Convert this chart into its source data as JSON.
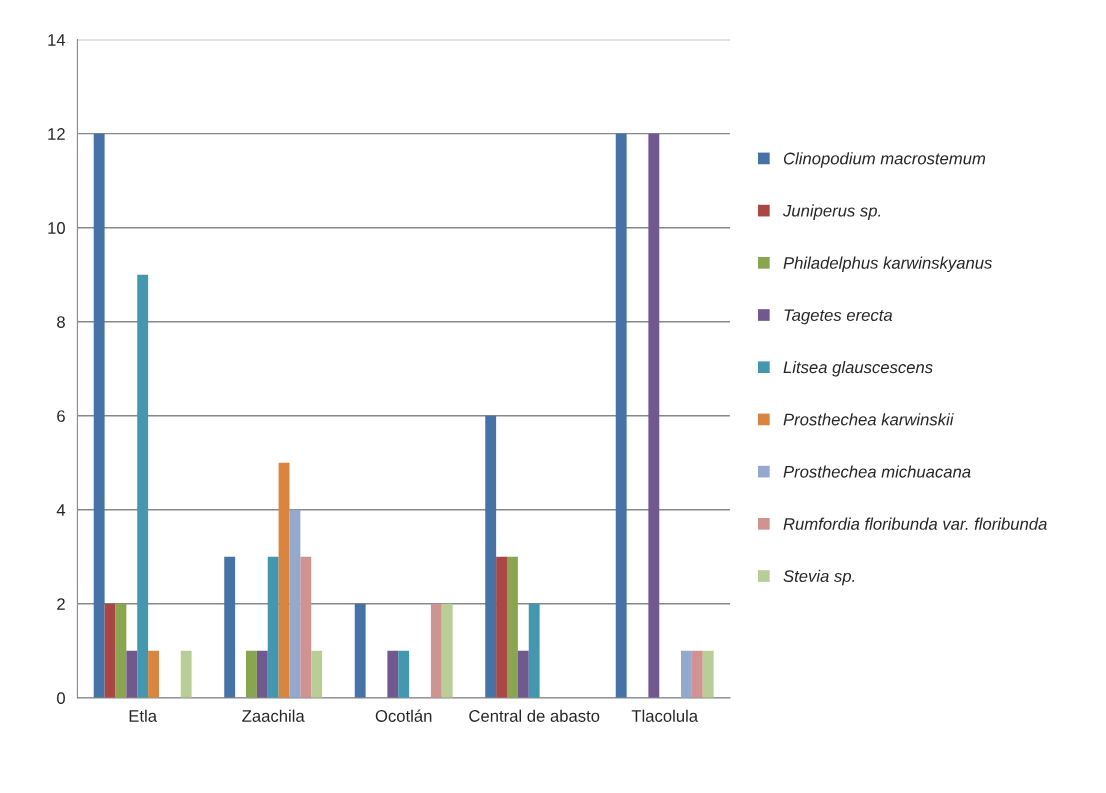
{
  "chart_data": {
    "type": "bar",
    "categories": [
      "Etla",
      "Zaachila",
      "Ocotlán",
      "Central de abasto",
      "Tlacolula"
    ],
    "series": [
      {
        "name": "Clinopodium macrostemum",
        "color": "#4572a7",
        "values": [
          12,
          3,
          2,
          6,
          12
        ]
      },
      {
        "name": "Juniperus sp.",
        "color": "#aa4643",
        "values": [
          2,
          0,
          0,
          3,
          0
        ]
      },
      {
        "name": "Philadelphus karwinskyanus",
        "color": "#89a54e",
        "values": [
          2,
          1,
          0,
          3,
          0
        ]
      },
      {
        "name": "Tagetes erecta",
        "color": "#71588f",
        "values": [
          1,
          1,
          1,
          1,
          12
        ]
      },
      {
        "name": "Litsea glauscescens",
        "color": "#4198af",
        "values": [
          9,
          3,
          1,
          2,
          0
        ]
      },
      {
        "name": "Prosthechea karwinskii",
        "color": "#db843d",
        "values": [
          1,
          5,
          0,
          0,
          0
        ]
      },
      {
        "name": "Prosthechea michuacana",
        "color": "#93a9cf",
        "values": [
          0,
          4,
          0,
          0,
          1
        ]
      },
      {
        "name": "Rumfordia floribunda var. floribunda",
        "color": "#d19392",
        "values": [
          0,
          3,
          2,
          0,
          1
        ]
      },
      {
        "name": "Stevia sp.",
        "color": "#b9cd96",
        "values": [
          1,
          1,
          2,
          0,
          1
        ]
      }
    ],
    "ylim": [
      0,
      14
    ],
    "yticks": [
      0,
      2,
      4,
      6,
      8,
      10,
      12,
      14
    ],
    "grid": "y",
    "legend": "right"
  }
}
